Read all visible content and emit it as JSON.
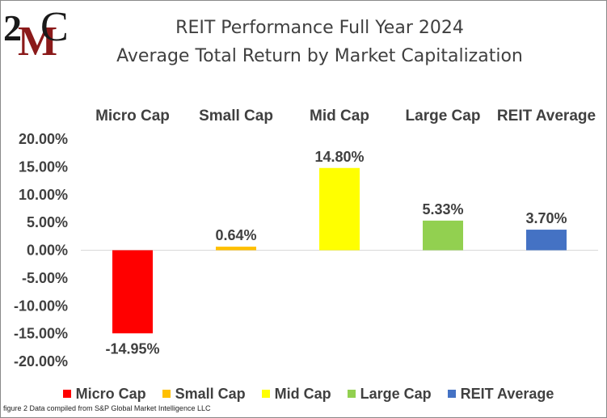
{
  "logo": {
    "text_top": "2",
    "text_m": "M",
    "text_c": "C"
  },
  "title_line1": "REIT Performance  Full Year 2024",
  "title_line2": "Average Total Return by Market Capitalization",
  "footnote": "figure 2 Data compiled from S&P Global Market Intelligence LLC",
  "chart_data": {
    "type": "bar",
    "categories": [
      "Micro Cap",
      "Small Cap",
      "Mid Cap",
      "Large Cap",
      "REIT Average"
    ],
    "values": [
      -14.95,
      0.64,
      14.8,
      5.33,
      3.7
    ],
    "data_labels": [
      "-14.95%",
      "0.64%",
      "14.80%",
      "5.33%",
      "3.70%"
    ],
    "colors": [
      "#ff0000",
      "#ffc000",
      "#ffff00",
      "#92d050",
      "#4472c4"
    ],
    "ylim": [
      -20,
      20
    ],
    "yticks": [
      20,
      15,
      10,
      5,
      0,
      -5,
      -10,
      -15,
      -20
    ],
    "ytick_labels": [
      "20.00%",
      "15.00%",
      "10.00%",
      "5.00%",
      "0.00%",
      "-5.00%",
      "-10.00%",
      "-15.00%",
      "-20.00%"
    ],
    "category_labels_position": "top",
    "legend": {
      "position": "bottom",
      "entries": [
        "Micro Cap",
        "Small Cap",
        "Mid Cap",
        "Large Cap",
        "REIT Average"
      ]
    },
    "grid": false
  }
}
